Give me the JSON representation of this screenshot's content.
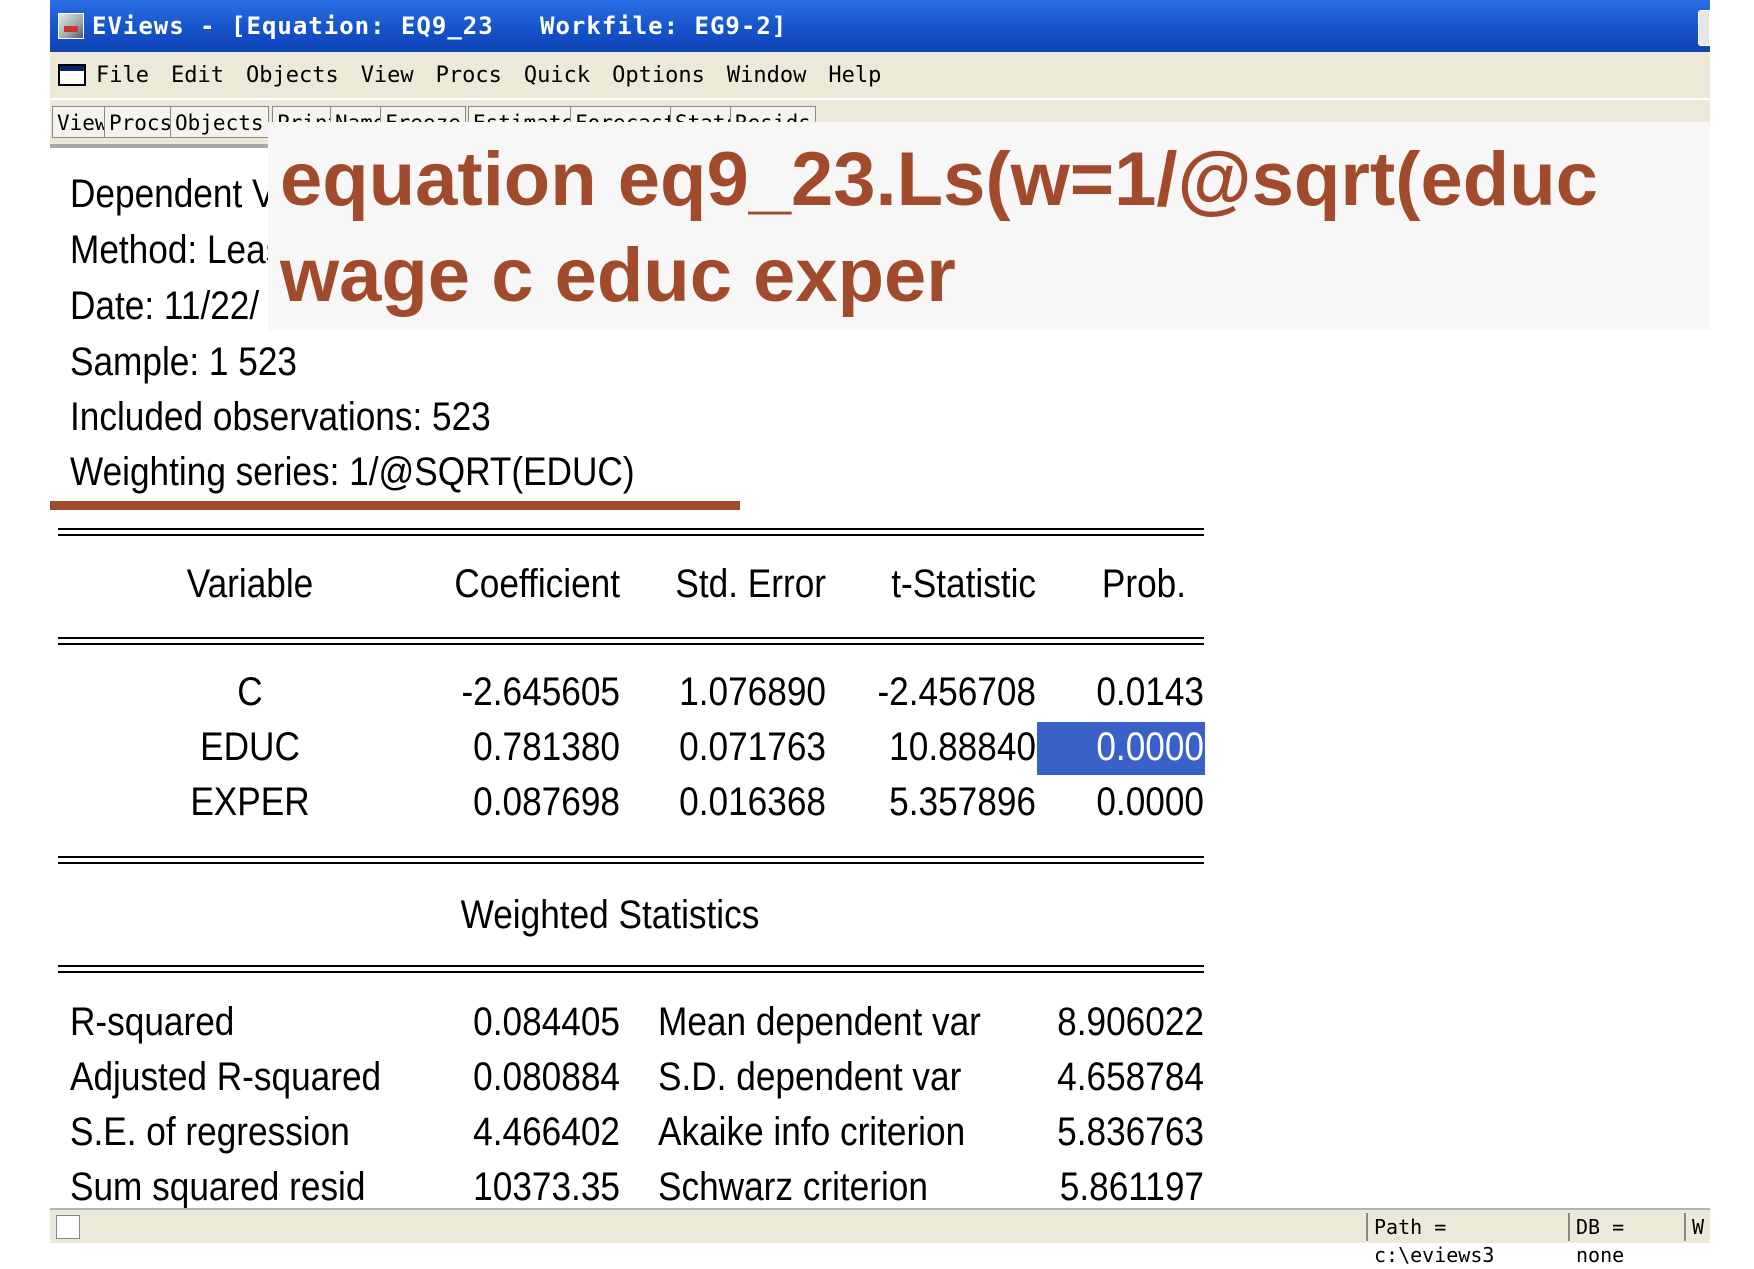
{
  "window": {
    "title": "EViews - [Equation: EQ9_23   Workfile: EG9-2]"
  },
  "menu": {
    "items": [
      "File",
      "Edit",
      "Objects",
      "View",
      "Procs",
      "Quick",
      "Options",
      "Window",
      "Help"
    ]
  },
  "toolbar": {
    "buttons": [
      "View",
      "Procs",
      "Objects",
      "Print",
      "Name",
      "Freeze",
      "Estimate",
      "Forecast",
      "Stats",
      "Resids"
    ]
  },
  "overlay": {
    "line1": "equation eq9_23.Ls(w=1/@sqrt(educ",
    "line2": "wage c educ exper"
  },
  "header": {
    "dependent": "Dependent Variable: WAGE",
    "method": "Method: Least Squares",
    "date": "Date: 11/22/",
    "sample": "Sample: 1 523",
    "included": "Included observations: 523",
    "weighting": "Weighting series: 1/@SQRT(EDUC)"
  },
  "coef_table": {
    "columns": [
      "Variable",
      "Coefficient",
      "Std. Error",
      "t-Statistic",
      "Prob."
    ],
    "rows": [
      {
        "variable": "C",
        "coefficient": "-2.645605",
        "std_error": "1.076890",
        "t_stat": "-2.456708",
        "prob": "0.0143"
      },
      {
        "variable": "EDUC",
        "coefficient": "0.781380",
        "std_error": "0.071763",
        "t_stat": "10.88840",
        "prob": "0.0000"
      },
      {
        "variable": "EXPER",
        "coefficient": "0.087698",
        "std_error": "0.016368",
        "t_stat": "5.357896",
        "prob": "0.0000"
      }
    ],
    "highlight_color": "#3a61c8"
  },
  "weighted_stats": {
    "title": "Weighted Statistics",
    "rows": [
      {
        "label": "R-squared",
        "value": "0.084405",
        "label2": "Mean dependent var",
        "value2": "8.906022"
      },
      {
        "label": "Adjusted R-squared",
        "value": "0.080884",
        "label2": "S.D. dependent var",
        "value2": "4.658784"
      },
      {
        "label": "S.E. of regression",
        "value": "4.466402",
        "label2": "Akaike info criterion",
        "value2": "5.836763"
      },
      {
        "label": "Sum squared resid",
        "value": "10373.35",
        "label2": "Schwarz criterion",
        "value2": "5.861197"
      }
    ]
  },
  "status": {
    "path": "Path = c:\\eviews3",
    "db": "DB = none",
    "wf": "W"
  },
  "colors": {
    "overlay_text": "#a24a2c",
    "titlebar": "#1451c9"
  }
}
